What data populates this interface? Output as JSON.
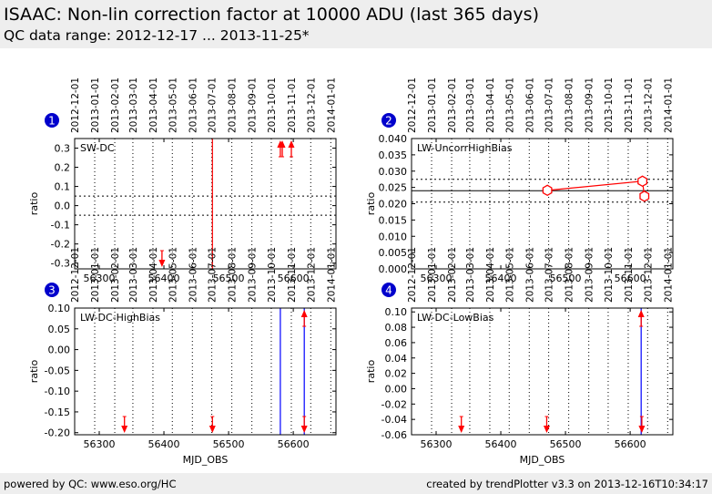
{
  "header": {
    "title": "ISAAC: Non-lin correction factor at 10000 ADU (last 365 days)",
    "subtitle": "QC data range: 2012-12-17 ... 2013-11-25*"
  },
  "footer": {
    "left": "powered by QC: www.eso.org/HC",
    "right": "created by trendPlotter v3.3 on 2013-12-16T10:34:17"
  },
  "colors": {
    "data": "#ff0000",
    "event": "#0000ff",
    "badge": "#0000cc",
    "background": "#ffffff"
  },
  "date_ticks": [
    {
      "label": "2012-12-01",
      "mjd": 56262
    },
    {
      "label": "2013-01-01",
      "mjd": 56293
    },
    {
      "label": "2013-02-01",
      "mjd": 56324
    },
    {
      "label": "2013-03-01",
      "mjd": 56352
    },
    {
      "label": "2013-04-01",
      "mjd": 56383
    },
    {
      "label": "2013-05-01",
      "mjd": 56413
    },
    {
      "label": "2013-06-01",
      "mjd": 56444
    },
    {
      "label": "2013-07-01",
      "mjd": 56474
    },
    {
      "label": "2013-08-01",
      "mjd": 56505
    },
    {
      "label": "2013-09-01",
      "mjd": 56536
    },
    {
      "label": "2013-10-01",
      "mjd": 56566
    },
    {
      "label": "2013-11-01",
      "mjd": 56597
    },
    {
      "label": "2013-12-01",
      "mjd": 56627
    },
    {
      "label": "2014-01-01",
      "mjd": 56658
    }
  ],
  "chart_data": [
    {
      "id": "1",
      "type": "scatter",
      "label": "SW-DC",
      "ylabel": "ratio",
      "xlabel": "",
      "xlim": [
        56262,
        56666
      ],
      "ylim": [
        -0.33,
        0.35
      ],
      "xticks": [
        56300,
        56400,
        56500,
        56600
      ],
      "yticks": [
        -0.3,
        -0.2,
        -0.1,
        0.0,
        0.1,
        0.2,
        0.3
      ],
      "ytick_labels": [
        "-0.3",
        "-0.2",
        "-0.1",
        "0.0",
        "0.1",
        "0.2",
        "0.3"
      ],
      "ref_lines": [
        {
          "y": 0.05,
          "style": "dotted"
        },
        {
          "y": -0.05,
          "style": "dotted"
        }
      ],
      "event_lines": [
        {
          "x": 56475,
          "color": "red"
        }
      ],
      "offscale": [
        {
          "x": 56397,
          "dir": "down"
        },
        {
          "x": 56580,
          "dir": "up"
        },
        {
          "x": 56583,
          "dir": "up"
        },
        {
          "x": 56597,
          "dir": "up"
        }
      ]
    },
    {
      "id": "2",
      "type": "line",
      "label": "LW-UncorrHighBias",
      "ylabel": "ratio",
      "xlabel": "",
      "xlim": [
        56262,
        56666
      ],
      "ylim": [
        0.0,
        0.04
      ],
      "xticks": [
        56300,
        56400,
        56500,
        56600
      ],
      "yticks": [
        0.0,
        0.005,
        0.01,
        0.015,
        0.02,
        0.025,
        0.03,
        0.035,
        0.04
      ],
      "ytick_labels": [
        "0.000",
        "0.005",
        "0.010",
        "0.015",
        "0.020",
        "0.025",
        "0.030",
        "0.035",
        "0.040"
      ],
      "ref_lines": [
        {
          "y": 0.024,
          "style": "solid"
        },
        {
          "y": 0.0205,
          "style": "dotted"
        },
        {
          "y": 0.0275,
          "style": "dotted"
        }
      ],
      "event_lines": [],
      "points": [
        {
          "x": 56472,
          "y": 0.0241
        },
        {
          "x": 56619,
          "y": 0.0269
        },
        {
          "x": 56622,
          "y": 0.0223
        }
      ],
      "offscale": []
    },
    {
      "id": "3",
      "type": "scatter",
      "label": "LW-DC-HighBias",
      "ylabel": "ratio",
      "xlabel": "MJD_OBS",
      "xlim": [
        56262,
        56666
      ],
      "ylim": [
        -0.205,
        0.1
      ],
      "xticks": [
        56300,
        56400,
        56500,
        56600
      ],
      "yticks": [
        -0.2,
        -0.15,
        -0.1,
        -0.05,
        0.0,
        0.05,
        0.1
      ],
      "ytick_labels": [
        "-0.20",
        "-0.15",
        "-0.10",
        "-0.05",
        "0.00",
        "0.05",
        "0.10"
      ],
      "ref_lines": [],
      "event_lines": [
        {
          "x": 56580,
          "color": "blue"
        },
        {
          "x": 56617,
          "color": "blue"
        }
      ],
      "offscale": [
        {
          "x": 56339,
          "dir": "down"
        },
        {
          "x": 56475,
          "dir": "down"
        },
        {
          "x": 56617,
          "dir": "up"
        },
        {
          "x": 56617,
          "dir": "down"
        }
      ]
    },
    {
      "id": "4",
      "type": "scatter",
      "label": "LW-DC-LowBias",
      "ylabel": "ratio",
      "xlabel": "MJD_OBS",
      "xlim": [
        56262,
        56666
      ],
      "ylim": [
        -0.06,
        0.105
      ],
      "xticks": [
        56300,
        56400,
        56500,
        56600
      ],
      "yticks": [
        -0.06,
        -0.04,
        -0.02,
        0.0,
        0.02,
        0.04,
        0.06,
        0.08,
        0.1
      ],
      "ytick_labels": [
        "-0.06",
        "-0.04",
        "-0.02",
        "0.00",
        "0.02",
        "0.04",
        "0.06",
        "0.08",
        "0.10"
      ],
      "ref_lines": [],
      "event_lines": [
        {
          "x": 56617,
          "color": "blue"
        }
      ],
      "offscale": [
        {
          "x": 56339,
          "dir": "down"
        },
        {
          "x": 56471,
          "dir": "down"
        },
        {
          "x": 56617,
          "dir": "up"
        },
        {
          "x": 56618,
          "dir": "down"
        }
      ]
    }
  ]
}
